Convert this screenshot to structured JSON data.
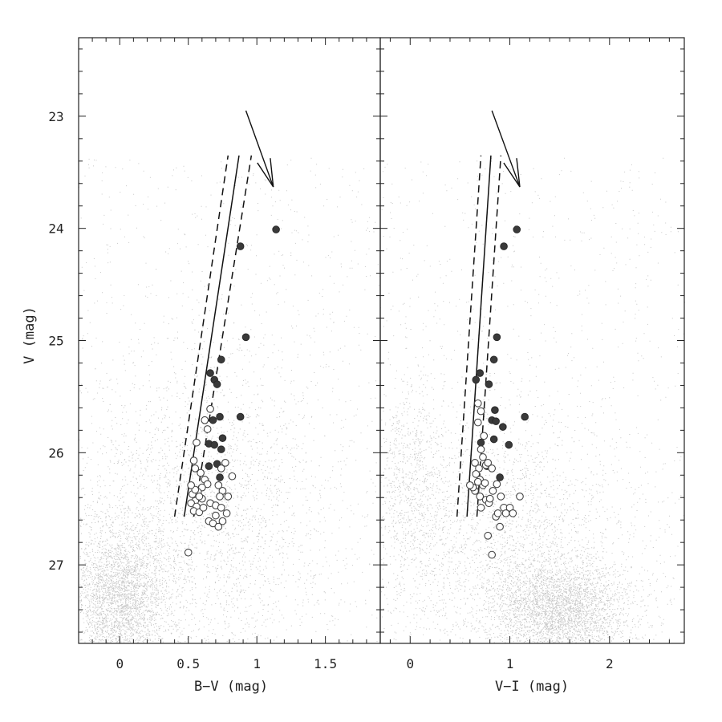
{
  "chart_data": [
    {
      "type": "scatter",
      "id": "left",
      "xlabel": "B−V (mag)",
      "ylabel": "V (mag)",
      "xlim": [
        -0.3,
        1.9
      ],
      "ylim": [
        27.7,
        22.3
      ],
      "y_inverted": true,
      "xticks": [
        0,
        0.5,
        1,
        1.5
      ],
      "xtick_labels": [
        "0",
        "0.5",
        "1",
        "1.5"
      ],
      "yticks": [
        23,
        24,
        25,
        26,
        27
      ],
      "ytick_labels": [
        "23",
        "24",
        "25",
        "26",
        "27"
      ],
      "reddening_vector": {
        "x": [
          0.92,
          1.12
        ],
        "y": [
          22.95,
          23.63
        ]
      },
      "ridge_line": {
        "x": [
          0.47,
          0.87
        ],
        "y": [
          26.57,
          23.35
        ]
      },
      "ridge_bounds": [
        {
          "x": [
            0.4,
            0.79
          ],
          "y": [
            26.57,
            23.35
          ]
        },
        {
          "x": [
            0.54,
            0.96
          ],
          "y": [
            26.57,
            23.35
          ]
        }
      ],
      "series": [
        {
          "name": "filled",
          "x": [
            1.14,
            0.88,
            0.92,
            0.74,
            0.66,
            0.69,
            0.71,
            0.88,
            0.73,
            0.68,
            0.65,
            0.69,
            0.75,
            0.74,
            0.65,
            0.71,
            0.73
          ],
          "y": [
            24.01,
            24.16,
            24.97,
            25.17,
            25.29,
            25.35,
            25.39,
            25.68,
            25.68,
            25.71,
            25.92,
            25.93,
            25.87,
            25.97,
            26.12,
            26.1,
            26.22
          ]
        },
        {
          "name": "open",
          "x": [
            0.66,
            0.62,
            0.64,
            0.56,
            0.54,
            0.55,
            0.59,
            0.62,
            0.64,
            0.6,
            0.57,
            0.53,
            0.55,
            0.52,
            0.56,
            0.54,
            0.58,
            0.61,
            0.66,
            0.7,
            0.74,
            0.78,
            0.82,
            0.74,
            0.77,
            0.72,
            0.75,
            0.79,
            0.73,
            0.7,
            0.65,
            0.68,
            0.72,
            0.75,
            0.6,
            0.58,
            0.55,
            0.52,
            0.5
          ],
          "y": [
            25.61,
            25.71,
            25.79,
            25.91,
            26.07,
            26.14,
            26.18,
            26.24,
            26.28,
            26.31,
            26.35,
            26.37,
            26.43,
            26.45,
            26.48,
            26.52,
            26.53,
            26.49,
            26.45,
            26.47,
            26.49,
            26.54,
            26.21,
            26.14,
            26.09,
            26.29,
            26.34,
            26.39,
            26.39,
            26.56,
            26.61,
            26.63,
            26.66,
            26.61,
            26.41,
            26.39,
            26.33,
            26.29,
            26.89
          ]
        }
      ]
    },
    {
      "type": "scatter",
      "id": "right",
      "xlabel": "V−I (mag)",
      "ylabel": "",
      "xlim": [
        -0.3,
        2.75
      ],
      "ylim": [
        27.7,
        22.3
      ],
      "y_inverted": true,
      "xticks": [
        0,
        1,
        2
      ],
      "xtick_labels": [
        "0",
        "1",
        "2"
      ],
      "yticks": [
        23,
        24,
        25,
        26,
        27
      ],
      "reddening_vector": {
        "x": [
          0.82,
          1.1
        ],
        "y": [
          22.95,
          23.63
        ]
      },
      "ridge_line": {
        "x": [
          0.57,
          0.81
        ],
        "y": [
          26.57,
          23.35
        ]
      },
      "ridge_bounds": [
        {
          "x": [
            0.47,
            0.71
          ],
          "y": [
            26.57,
            23.35
          ]
        },
        {
          "x": [
            0.67,
            0.91
          ],
          "y": [
            26.57,
            23.35
          ]
        }
      ],
      "series": [
        {
          "name": "filled",
          "x": [
            1.07,
            0.94,
            0.87,
            0.84,
            0.7,
            0.66,
            0.79,
            0.85,
            0.82,
            0.86,
            1.15,
            0.93,
            0.71,
            0.84,
            0.99,
            0.77,
            0.9
          ],
          "y": [
            24.01,
            24.16,
            24.97,
            25.17,
            25.29,
            25.35,
            25.39,
            25.62,
            25.71,
            25.72,
            25.68,
            25.77,
            25.91,
            25.88,
            25.93,
            26.12,
            26.22
          ]
        },
        {
          "name": "open",
          "x": [
            0.68,
            0.71,
            0.68,
            0.74,
            0.71,
            0.73,
            0.65,
            0.69,
            0.66,
            0.7,
            0.73,
            0.65,
            0.7,
            0.76,
            0.79,
            0.71,
            0.76,
            0.68,
            0.82,
            0.87,
            0.91,
            0.94,
            0.96,
            1.0,
            1.03,
            1.1,
            0.9,
            0.86,
            0.88,
            0.8,
            0.83,
            0.78,
            0.75,
            0.63,
            0.6,
            0.78,
            0.82
          ],
          "y": [
            25.56,
            25.63,
            25.73,
            25.85,
            25.97,
            26.04,
            26.09,
            26.14,
            26.19,
            26.24,
            26.29,
            26.34,
            26.39,
            26.42,
            26.45,
            26.49,
            26.11,
            26.26,
            26.14,
            26.28,
            26.39,
            26.49,
            26.54,
            26.49,
            26.54,
            26.39,
            26.66,
            26.57,
            26.54,
            26.41,
            26.34,
            26.09,
            26.27,
            26.31,
            26.29,
            26.74,
            26.91
          ]
        }
      ]
    }
  ]
}
